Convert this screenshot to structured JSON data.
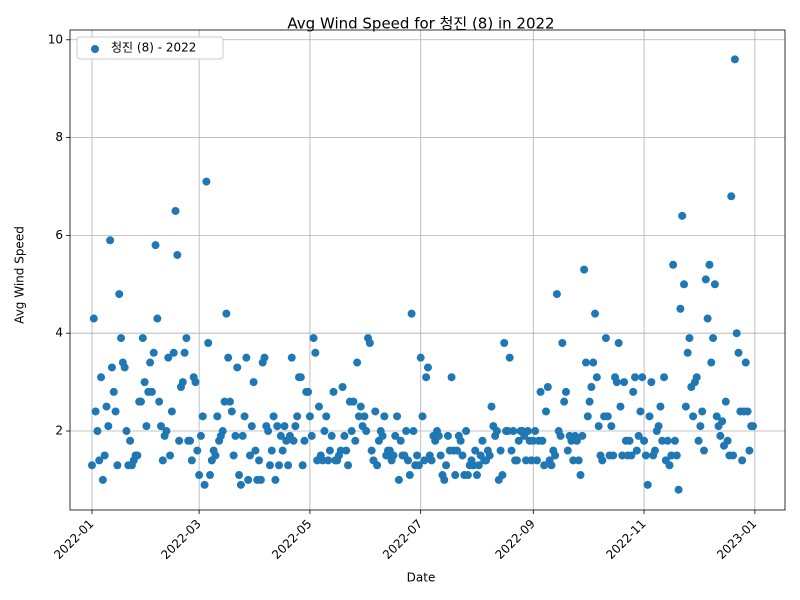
{
  "chart_data": {
    "type": "scatter",
    "title": "Avg Wind Speed for 청진 (8) in 2022",
    "xlabel": "Date",
    "ylabel": "Avg Wind Speed",
    "legend": "upper left",
    "grid": true,
    "xlim": [
      -12.1,
      381.6
    ],
    "ylim": [
      0.385,
      10.2
    ],
    "xticks": [
      {
        "value": 0,
        "label": "2022-01"
      },
      {
        "value": 59,
        "label": "2022-03"
      },
      {
        "value": 120,
        "label": "2022-05"
      },
      {
        "value": 181,
        "label": "2022-07"
      },
      {
        "value": 243,
        "label": "2022-09"
      },
      {
        "value": 304,
        "label": "2022-11"
      },
      {
        "value": 365,
        "label": "2023-01"
      }
    ],
    "yticks": [
      2,
      4,
      6,
      8,
      10
    ],
    "x": [
      0,
      1,
      2,
      3,
      4,
      5,
      6,
      7,
      8,
      9,
      10,
      11,
      12,
      13,
      14,
      15,
      16,
      17,
      18,
      19,
      20,
      21,
      22,
      23,
      24,
      25,
      26,
      27,
      28,
      29,
      30,
      31,
      32,
      33,
      34,
      35,
      36,
      37,
      38,
      39,
      40,
      41,
      42,
      43,
      44,
      45,
      46,
      47,
      48,
      49,
      50,
      51,
      52,
      53,
      54,
      55,
      56,
      57,
      58,
      59,
      60,
      61,
      62,
      63,
      64,
      65,
      66,
      67,
      68,
      69,
      70,
      71,
      72,
      73,
      74,
      75,
      76,
      77,
      78,
      79,
      80,
      81,
      82,
      83,
      84,
      85,
      86,
      87,
      88,
      89,
      90,
      91,
      92,
      93,
      94,
      95,
      96,
      97,
      98,
      99,
      100,
      101,
      102,
      103,
      104,
      105,
      106,
      107,
      108,
      109,
      110,
      111,
      112,
      113,
      114,
      115,
      116,
      117,
      118,
      119,
      120,
      121,
      122,
      123,
      124,
      125,
      126,
      127,
      128,
      129,
      130,
      131,
      132,
      133,
      134,
      135,
      136,
      137,
      138,
      139,
      140,
      141,
      142,
      143,
      144,
      145,
      146,
      147,
      148,
      149,
      150,
      151,
      152,
      153,
      154,
      155,
      156,
      157,
      158,
      159,
      160,
      161,
      162,
      163,
      164,
      165,
      166,
      167,
      168,
      169,
      170,
      171,
      172,
      173,
      174,
      175,
      176,
      177,
      178,
      179,
      180,
      181,
      182,
      183,
      184,
      185,
      186,
      187,
      188,
      189,
      190,
      191,
      192,
      193,
      194,
      195,
      196,
      197,
      198,
      199,
      200,
      201,
      202,
      203,
      204,
      205,
      206,
      207,
      208,
      209,
      210,
      211,
      212,
      213,
      214,
      215,
      216,
      217,
      218,
      219,
      220,
      221,
      222,
      223,
      224,
      225,
      226,
      227,
      228,
      229,
      230,
      231,
      232,
      233,
      234,
      235,
      236,
      237,
      238,
      239,
      240,
      241,
      242,
      243,
      244,
      245,
      246,
      247,
      248,
      249,
      250,
      251,
      252,
      253,
      254,
      255,
      256,
      257,
      258,
      259,
      260,
      261,
      262,
      263,
      264,
      265,
      266,
      267,
      268,
      269,
      270,
      271,
      272,
      273,
      274,
      275,
      276,
      277,
      278,
      279,
      280,
      281,
      282,
      283,
      284,
      285,
      286,
      287,
      288,
      289,
      290,
      291,
      292,
      293,
      294,
      295,
      296,
      297,
      298,
      299,
      300,
      301,
      302,
      303,
      304,
      305,
      306,
      307,
      308,
      309,
      310,
      311,
      312,
      313,
      314,
      315,
      316,
      317,
      318,
      319,
      320,
      321,
      322,
      323,
      324,
      325,
      326,
      327,
      328,
      329,
      330,
      331,
      332,
      333,
      334,
      335,
      336,
      337,
      338,
      339,
      340,
      341,
      342,
      343,
      344,
      345,
      346,
      347,
      348,
      349,
      350,
      351,
      352,
      353,
      354,
      355,
      356,
      357,
      358,
      359,
      360,
      361,
      362,
      363,
      364
    ],
    "series": [
      {
        "name": "청진 (8) - 2022",
        "color": "#1f77b4",
        "values": [
          1.3,
          4.3,
          2.4,
          2.0,
          1.4,
          3.1,
          1.0,
          1.5,
          2.5,
          2.1,
          5.9,
          3.3,
          2.8,
          2.4,
          1.3,
          4.8,
          3.9,
          3.4,
          3.3,
          2.0,
          1.3,
          1.8,
          1.3,
          1.4,
          1.5,
          1.5,
          2.6,
          2.6,
          3.9,
          3.0,
          2.1,
          2.8,
          3.4,
          2.8,
          3.6,
          5.8,
          4.3,
          2.6,
          2.1,
          1.4,
          1.9,
          2.0,
          3.5,
          1.5,
          2.4,
          3.6,
          6.5,
          5.6,
          1.8,
          2.9,
          3.0,
          3.6,
          3.9,
          1.8,
          1.8,
          1.4,
          3.1,
          3.0,
          1.6,
          1.1,
          1.9,
          2.3,
          0.9,
          7.1,
          3.8,
          1.1,
          1.4,
          1.6,
          1.5,
          2.3,
          1.8,
          1.9,
          2.0,
          2.6,
          4.4,
          3.5,
          2.6,
          2.4,
          1.5,
          1.9,
          3.3,
          1.1,
          0.9,
          1.9,
          2.3,
          3.5,
          1.0,
          1.5,
          2.1,
          3.0,
          1.6,
          1.0,
          1.4,
          1.0,
          3.4,
          3.5,
          2.1,
          2.0,
          1.3,
          1.6,
          2.3,
          1.0,
          2.1,
          1.3,
          1.9,
          1.6,
          2.1,
          1.8,
          1.3,
          1.9,
          3.5,
          1.8,
          2.1,
          2.3,
          3.1,
          3.1,
          1.3,
          1.8,
          2.8,
          2.8,
          2.3,
          1.9,
          3.9,
          3.6,
          1.4,
          2.5,
          1.5,
          1.4,
          2.0,
          2.3,
          1.4,
          1.6,
          1.9,
          2.8,
          1.4,
          1.4,
          1.5,
          1.6,
          2.9,
          1.9,
          1.6,
          1.3,
          2.6,
          2.0,
          2.6,
          1.8,
          3.4,
          2.3,
          2.5,
          2.1,
          2.3,
          2.0,
          3.9,
          3.8,
          1.6,
          1.4,
          2.4,
          1.3,
          1.8,
          2.0,
          1.9,
          2.3,
          1.5,
          1.6,
          1.6,
          1.4,
          1.5,
          1.9,
          2.3,
          1.0,
          1.8,
          1.5,
          1.5,
          2.0,
          1.4,
          1.1,
          4.4,
          2.0,
          1.3,
          1.5,
          1.3,
          3.5,
          2.3,
          1.4,
          3.1,
          3.3,
          1.5,
          1.4,
          1.9,
          1.8,
          2.0,
          1.9,
          1.5,
          1.1,
          1.0,
          1.3,
          1.9,
          1.6,
          3.1,
          1.6,
          1.1,
          1.6,
          1.9,
          1.8,
          1.5,
          1.1,
          2.0,
          1.1,
          1.3,
          1.4,
          1.3,
          1.6,
          1.1,
          1.3,
          1.5,
          1.8,
          1.4,
          1.4,
          1.6,
          1.5,
          2.5,
          2.1,
          1.9,
          2.0,
          1.0,
          1.6,
          1.1,
          3.8,
          2.0,
          2.0,
          3.5,
          1.6,
          2.0,
          1.4,
          1.4,
          1.8,
          2.0,
          2.0,
          1.9,
          1.4,
          2.0,
          1.8,
          1.4,
          1.8,
          2.0,
          1.4,
          1.8,
          2.8,
          1.8,
          1.3,
          2.4,
          2.9,
          1.4,
          1.3,
          1.6,
          1.5,
          4.8,
          2.0,
          1.9,
          3.8,
          2.6,
          2.8,
          1.6,
          1.9,
          1.8,
          1.4,
          1.9,
          1.8,
          1.4,
          1.1,
          1.9,
          5.3,
          3.4,
          2.3,
          2.6,
          2.9,
          3.4,
          4.4,
          3.1,
          2.1,
          1.5,
          1.4,
          2.3,
          3.9,
          2.3,
          1.5,
          2.1,
          1.5,
          3.1,
          3.0,
          3.8,
          2.5,
          1.5,
          3.0,
          1.8,
          1.5,
          1.8,
          1.5,
          2.8,
          3.1,
          1.6,
          1.9,
          2.4,
          3.1,
          1.8,
          1.5,
          0.9,
          2.3,
          3.0,
          1.5,
          1.6,
          2.0,
          2.1,
          2.5,
          1.8,
          3.1,
          1.4,
          1.8,
          1.3,
          1.5,
          5.4,
          1.8,
          1.5,
          0.8,
          4.5,
          6.4,
          5.0,
          2.5,
          3.6,
          3.9,
          2.9,
          2.3,
          3.0,
          3.1,
          1.8,
          2.1,
          2.4,
          1.6,
          5.1,
          4.3,
          5.4,
          3.4,
          3.9,
          5.0,
          2.3,
          2.1,
          1.9,
          2.2,
          1.7,
          2.6,
          1.8,
          1.5,
          6.8,
          1.5,
          9.6,
          4.0,
          3.6,
          2.4,
          1.4,
          2.4,
          3.4,
          2.4,
          1.6,
          2.1,
          2.1
        ]
      }
    ]
  }
}
